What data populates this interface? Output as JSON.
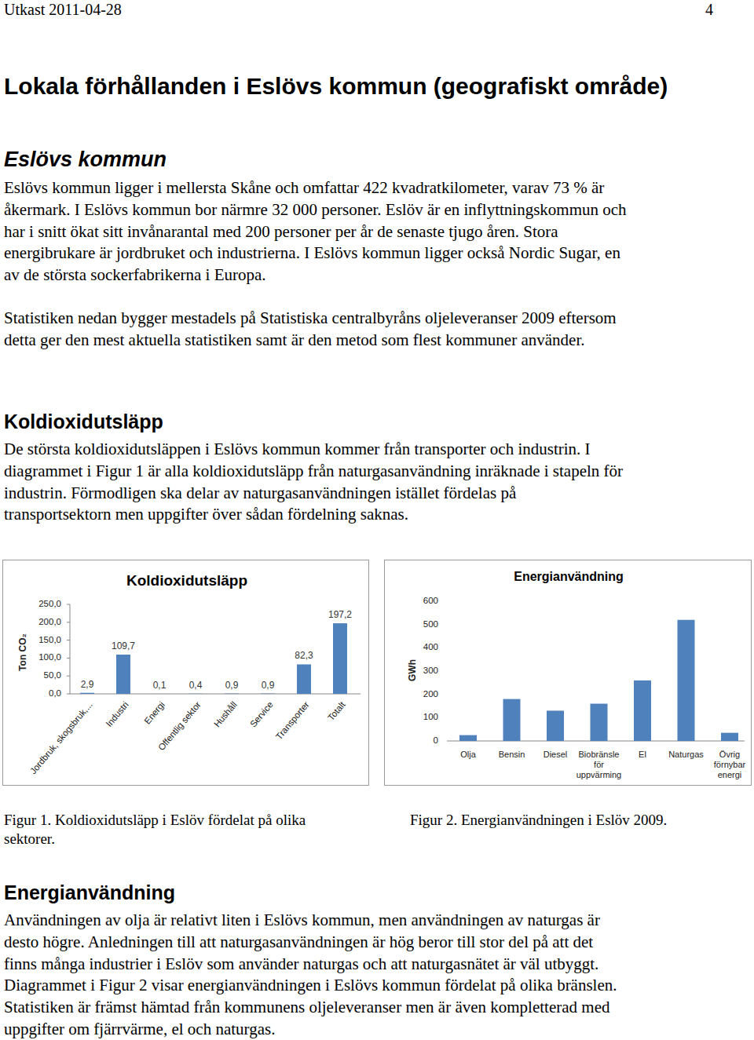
{
  "header": {
    "draft": "Utkast 2011-04-28",
    "page": "4"
  },
  "title": "Lokala förhållanden i Eslövs kommun (geografiskt område)",
  "sections": [
    {
      "heading": "Eslövs kommun",
      "paragraphs": [
        [
          "Eslövs kommun ligger i mellersta Skåne och omfattar 422 kvadratkilometer, varav 73 % är",
          "åkermark. I Eslövs kommun bor närmre 32 000 personer. Eslöv är en inflyttningskommun och",
          "har i snitt ökat sitt invånarantal med 200 personer per år de senaste tjugo åren.  Stora",
          "energibrukare är jordbruket och industrierna. I Eslövs kommun ligger också Nordic Sugar, en",
          "av de största sockerfabrikerna i Europa."
        ],
        [
          "Statistiken nedan bygger mestadels på Statistiska centralbyråns oljeleveranser 2009 eftersom",
          "detta ger den mest aktuella statistiken samt är den metod som flest kommuner använder."
        ]
      ]
    },
    {
      "heading": "Koldioxidutsläpp",
      "paragraphs": [
        [
          "De största koldioxidutsläppen i Eslövs kommun kommer från transporter och industrin. I",
          "diagrammet i Figur 1 är alla koldioxidutsläpp från naturgasanvändning inräknade i stapeln för",
          "industrin. Förmodligen ska delar av naturgasanvändningen istället fördelas på",
          "transportsektorn men uppgifter över sådan fördelning saknas."
        ]
      ]
    },
    {
      "heading": "Energianvändning",
      "paragraphs": [
        [
          "Användningen av olja är relativt liten i Eslövs kommun, men användningen av naturgas är",
          "desto högre. Anledningen till att naturgasanvändningen är hög beror till stor del på att det",
          "finns många industrier i Eslöv som använder naturgas och att naturgasnätet är väl utbyggt.",
          "Diagrammet i Figur 2 visar energianvändningen i Eslövs kommun fördelat på olika bränslen.",
          "Statistiken är främst hämtad från kommunens oljeleveranser men är även kompletterad med",
          "uppgifter om fjärrvärme, el och naturgas."
        ]
      ]
    }
  ],
  "captions": [
    [
      "Figur 1. Koldioxidutsläpp i Eslöv fördelat på olika",
      "sektorer."
    ],
    [
      "Figur 2. Energianvändningen i Eslöv 2009."
    ]
  ],
  "chart_data": [
    {
      "type": "bar",
      "title": "Koldioxidutsläpp",
      "ylabel": "Ton CO₂",
      "categories": [
        "Jordbruk, skogsbruk,...",
        "Industri",
        "Energi",
        "Offentlig sektor",
        "Hushåll",
        "Service",
        "Transporter",
        "Totalt"
      ],
      "values": [
        2.9,
        109.7,
        0.1,
        0.4,
        0.9,
        0.9,
        82.3,
        197.2
      ],
      "value_labels": [
        "2,9",
        "109,7",
        "0,1",
        "0,4",
        "0,9",
        "0,9",
        "82,3",
        "197,2"
      ],
      "color": "#4f81bd",
      "ylim": [
        0,
        250
      ],
      "yticks": [
        {
          "value": 0,
          "label": "0,0"
        },
        {
          "value": 50,
          "label": "50,0"
        },
        {
          "value": 100,
          "label": "100,0"
        },
        {
          "value": 150,
          "label": "150,0"
        },
        {
          "value": 200,
          "label": "200,0"
        },
        {
          "value": 250,
          "label": "250,0"
        }
      ],
      "data_labels": true,
      "grid": false
    },
    {
      "type": "bar",
      "title": "Energianvändning",
      "ylabel": "GWh",
      "categories": [
        "Olja",
        "Bensin",
        "Diesel",
        "Biobränsle för uppvärming",
        "El",
        "Naturgas",
        "Övrig förnybar energi"
      ],
      "values": [
        25,
        180,
        130,
        160,
        260,
        520,
        35
      ],
      "color": "#4f81bd",
      "ylim": [
        0,
        600
      ],
      "yticks": [
        0,
        100,
        200,
        300,
        400,
        500,
        600
      ],
      "data_labels": false,
      "grid": false
    }
  ]
}
